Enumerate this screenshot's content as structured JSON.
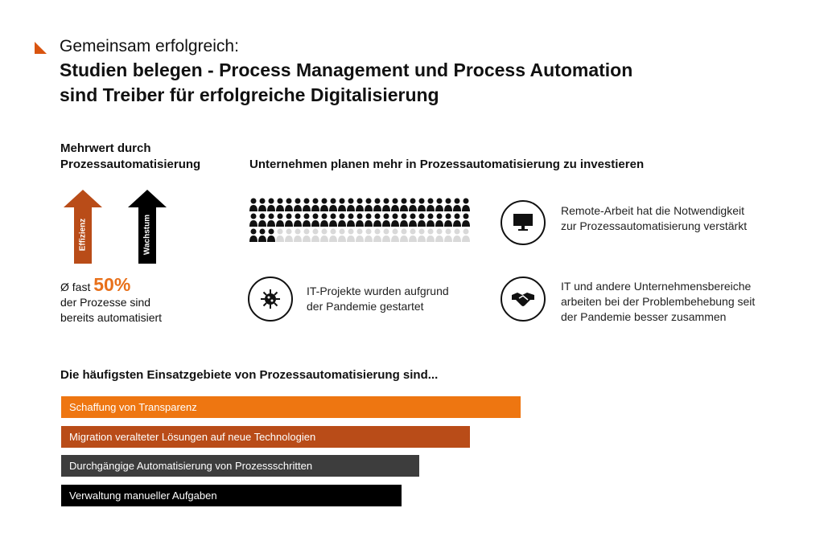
{
  "header": {
    "kicker": "Gemeinsam erfolgreich:",
    "title_line1": "Studien belegen - Process Management und Process Automation",
    "title_line2": "sind Treiber für erfolgreiche Digitalisierung",
    "accent_color": "#d9540f"
  },
  "left": {
    "heading_line1": "Mehrwert durch",
    "heading_line2": "Prozessautomatisierung",
    "arrows": [
      {
        "label": "Effizienz",
        "color": "#b94c18"
      },
      {
        "label": "Wachstum",
        "color": "#000000"
      }
    ],
    "stat_prefix": "Ø fast",
    "stat_value": "50%",
    "stat_line2": "der Prozesse sind",
    "stat_line3": "bereits automatisiert"
  },
  "middle": {
    "heading": "Unternehmen planen mehr in Prozessautomatisierung zu investieren",
    "people_total": 75,
    "people_highlighted": 53,
    "people_on_color": "#111111",
    "people_off_color": "#d9d9d9"
  },
  "facts": [
    {
      "icon": "monitor-icon",
      "line1": "Remote-Arbeit hat die Notwendigkeit",
      "line2": "zur Prozessautomatisierung verstärkt",
      "line3": ""
    },
    {
      "icon": "virus-icon",
      "line1": "IT-Projekte wurden aufgrund",
      "line2": "der Pandemie gestartet",
      "line3": ""
    },
    {
      "icon": "handshake-icon",
      "line1": "IT und andere Unternehmensbereiche",
      "line2": "arbeiten bei der Problembehebung seit",
      "line3": "der Pandemie besser zusammen"
    }
  ],
  "bars": {
    "heading": "Die häufigsten Einsatzgebiete von Prozessautomatisierung sind...",
    "items": [
      {
        "label": "Schaffung von Transparenz",
        "value": 1.0,
        "color": "#ee7611"
      },
      {
        "label": "Migration veralteter Lösungen auf neue Technologien",
        "value": 0.89,
        "color": "#b94c18"
      },
      {
        "label": "Durchgängige Automatisierung von Prozessschritten",
        "value": 0.78,
        "color": "#3d3d3d"
      },
      {
        "label": "Verwaltung manueller Aufgaben",
        "value": 0.74,
        "color": "#000000"
      }
    ]
  }
}
